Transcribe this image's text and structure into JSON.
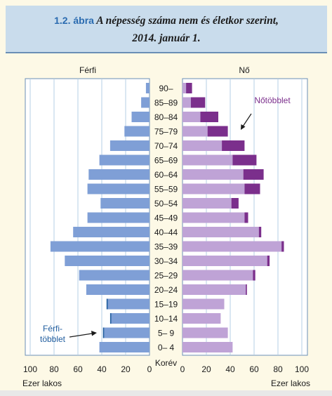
{
  "header": {
    "fig_num": "1.2. ábra",
    "title_line1": "A népesség száma nem és életkor szerint,",
    "title_line2": "2014. január 1."
  },
  "chart_data": {
    "type": "bar",
    "subtype": "population-pyramid",
    "title": "A népesség száma nem és életkor szerint, 2014. január 1.",
    "left_panel_title": "Férfi",
    "right_panel_title": "Nő",
    "center_label": "Korév",
    "xlabel_left": "Ezer lakos",
    "xlabel_right": "Ezer lakos",
    "xlim": [
      0,
      100
    ],
    "x_ticks": [
      0,
      20,
      40,
      60,
      80,
      100
    ],
    "categories": [
      "90–",
      "85–89",
      "80–84",
      "75–79",
      "70–74",
      "65–69",
      "60–64",
      "55–59",
      "50–54",
      "45–49",
      "40–44",
      "35–39",
      "30–34",
      "25–29",
      "20–24",
      "15–19",
      "10–14",
      "5– 9",
      "0– 4"
    ],
    "male": [
      3,
      7,
      15,
      21,
      33,
      42,
      51,
      52,
      41,
      52,
      64,
      83,
      71,
      59,
      53,
      36,
      33,
      39,
      42
    ],
    "female": [
      8,
      19,
      30,
      38,
      52,
      62,
      68,
      65,
      47,
      55,
      66,
      85,
      73,
      61,
      54,
      35,
      32,
      38,
      42
    ],
    "male_surplus_label": "Férfi-\ntöbblet",
    "female_surplus_label": "Nőtöbblet",
    "colors": {
      "male": "#7f9fd6",
      "male_surplus": "#1f5c9e",
      "female": "#bfa3d6",
      "female_surplus": "#7b2f8c",
      "grid": "#b6cfe4",
      "panel_bg": "#ffffff",
      "panel_border": "#6a8fb5"
    },
    "grid": true
  }
}
